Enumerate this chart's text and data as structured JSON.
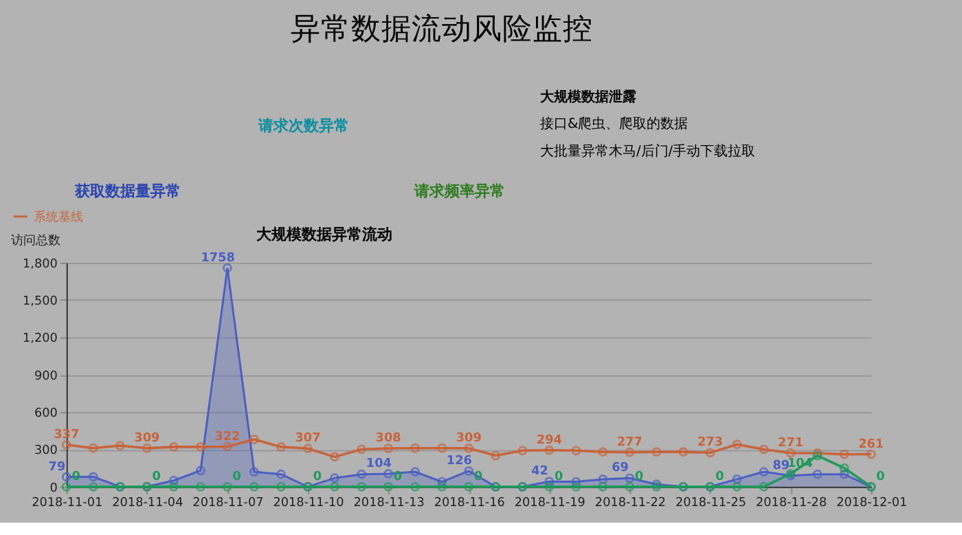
{
  "chart_data": {
    "type": "line",
    "title": "异常数据流动风险监控",
    "ylabel": "访问总数",
    "annotations": [
      "获取数据量异常",
      "请求次数异常",
      "请求频率异常",
      "大规模数据异常流动",
      "大规模数据泄露",
      "接口&爬虫、爬取的数据",
      "大批量异常木马/后门/手动下载拉取"
    ],
    "x": [
      "2018-11-01",
      "2018-11-02",
      "2018-11-03",
      "2018-11-04",
      "2018-11-05",
      "2018-11-06",
      "2018-11-07",
      "2018-11-08",
      "2018-11-09",
      "2018-11-10",
      "2018-11-11",
      "2018-11-12",
      "2018-11-13",
      "2018-11-14",
      "2018-11-15",
      "2018-11-16",
      "2018-11-17",
      "2018-11-18",
      "2018-11-19",
      "2018-11-20",
      "2018-11-21",
      "2018-11-22",
      "2018-11-23",
      "2018-11-24",
      "2018-11-25",
      "2018-11-26",
      "2018-11-27",
      "2018-11-28",
      "2018-11-29",
      "2018-11-30",
      "2018-12-01"
    ],
    "series": [
      {
        "type": "area",
        "color": "#4a5fc1",
        "values": [
          79,
          80,
          0,
          0,
          50,
          130,
          1758,
          120,
          100,
          0,
          70,
          100,
          104,
          120,
          40,
          126,
          0,
          0,
          42,
          40,
          60,
          69,
          20,
          0,
          0,
          60,
          120,
          89,
          100,
          100,
          0
        ],
        "value_labels": [
          "79",
          null,
          null,
          null,
          null,
          null,
          "1758",
          null,
          null,
          null,
          null,
          null,
          "104",
          null,
          null,
          "126",
          null,
          null,
          "42",
          null,
          null,
          "69",
          null,
          null,
          null,
          null,
          null,
          "89",
          null,
          null,
          null
        ]
      },
      {
        "type": "line",
        "name": "系统基线",
        "color": "#c8643c",
        "values": [
          337,
          310,
          330,
          309,
          320,
          320,
          322,
          380,
          320,
          307,
          240,
          300,
          308,
          310,
          310,
          309,
          250,
          290,
          294,
          290,
          280,
          277,
          280,
          280,
          273,
          340,
          300,
          271,
          270,
          260,
          261
        ],
        "value_labels": [
          "337",
          null,
          null,
          "309",
          null,
          null,
          "322",
          null,
          null,
          "307",
          null,
          null,
          "308",
          null,
          null,
          "309",
          null,
          null,
          "294",
          null,
          null,
          "277",
          null,
          null,
          "273",
          null,
          null,
          "271",
          null,
          null,
          "261"
        ]
      },
      {
        "type": "line",
        "color": "#1e9a5a",
        "values": [
          0,
          0,
          0,
          0,
          0,
          0,
          0,
          0,
          0,
          0,
          0,
          0,
          0,
          0,
          0,
          0,
          0,
          0,
          0,
          0,
          0,
          0,
          0,
          0,
          0,
          0,
          0,
          104,
          250,
          150,
          0
        ],
        "value_labels": [
          "0",
          null,
          null,
          "0",
          null,
          null,
          "0",
          null,
          null,
          "0",
          null,
          null,
          "0",
          null,
          null,
          "0",
          null,
          null,
          "0",
          null,
          null,
          "0",
          null,
          null,
          "0",
          null,
          null,
          "104",
          null,
          null,
          "0"
        ]
      }
    ],
    "xlim": [
      "2018-11-01",
      "2018-12-01"
    ],
    "xticks": [
      "2018-11-01",
      "2018-11-04",
      "2018-11-07",
      "2018-11-10",
      "2018-11-13",
      "2018-11-16",
      "2018-11-19",
      "2018-11-22",
      "2018-11-25",
      "2018-11-28",
      "2018-12-01"
    ],
    "ylim": [
      0,
      1800
    ],
    "yticks": [
      0,
      300,
      600,
      900,
      {
        "value": 1200,
        "label": "1,200"
      },
      {
        "value": 1500,
        "label": "1,500"
      },
      {
        "value": 1800,
        "label": "1,800"
      }
    ],
    "grid": "y",
    "legend": "top left",
    "marker": "circle",
    "line_style": "solid"
  }
}
